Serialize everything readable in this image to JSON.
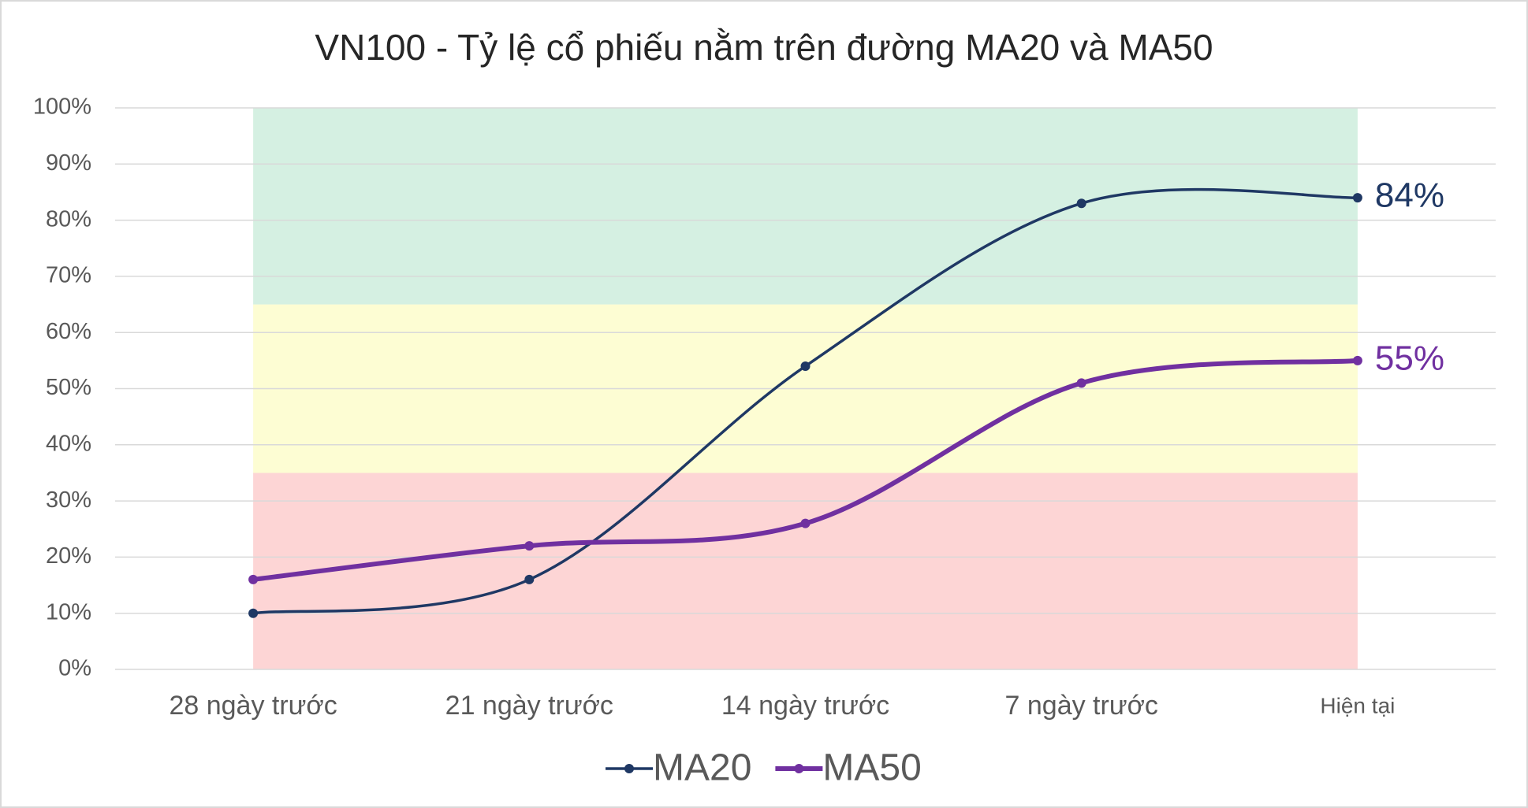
{
  "chart_data": {
    "type": "line",
    "title": "VN100 - Tỷ lệ cổ phiếu nằm trên đường MA20 và MA50",
    "categories": [
      "28 ngày trước",
      "21 ngày trước",
      "14 ngày trước",
      "7 ngày trước",
      "Hiện tại"
    ],
    "series": [
      {
        "name": "MA20",
        "color": "#1f3864",
        "values": [
          10,
          16,
          54,
          83,
          84
        ],
        "value_labels": [
          null,
          null,
          null,
          null,
          "84%"
        ]
      },
      {
        "name": "MA50",
        "color": "#7030a0",
        "values": [
          16,
          22,
          26,
          51,
          55
        ],
        "value_labels": [
          null,
          null,
          null,
          null,
          "55%"
        ]
      }
    ],
    "bands": [
      {
        "from": 0,
        "to": 35,
        "color": "#fdd5d5"
      },
      {
        "from": 35,
        "to": 65,
        "color": "#fdfdd3"
      },
      {
        "from": 65,
        "to": 100,
        "color": "#d5f0e2"
      }
    ],
    "ylim": [
      0,
      100
    ],
    "yticks": [
      {
        "value": 0,
        "label": "0%"
      },
      {
        "value": 10,
        "label": "10%"
      },
      {
        "value": 20,
        "label": "20%"
      },
      {
        "value": 30,
        "label": "30%"
      },
      {
        "value": 40,
        "label": "40%"
      },
      {
        "value": 50,
        "label": "50%"
      },
      {
        "value": 60,
        "label": "60%"
      },
      {
        "value": 70,
        "label": "70%"
      },
      {
        "value": 80,
        "label": "80%"
      },
      {
        "value": 90,
        "label": "90%"
      },
      {
        "value": 100,
        "label": "100%"
      }
    ],
    "grid": true,
    "legend": "bottom"
  }
}
